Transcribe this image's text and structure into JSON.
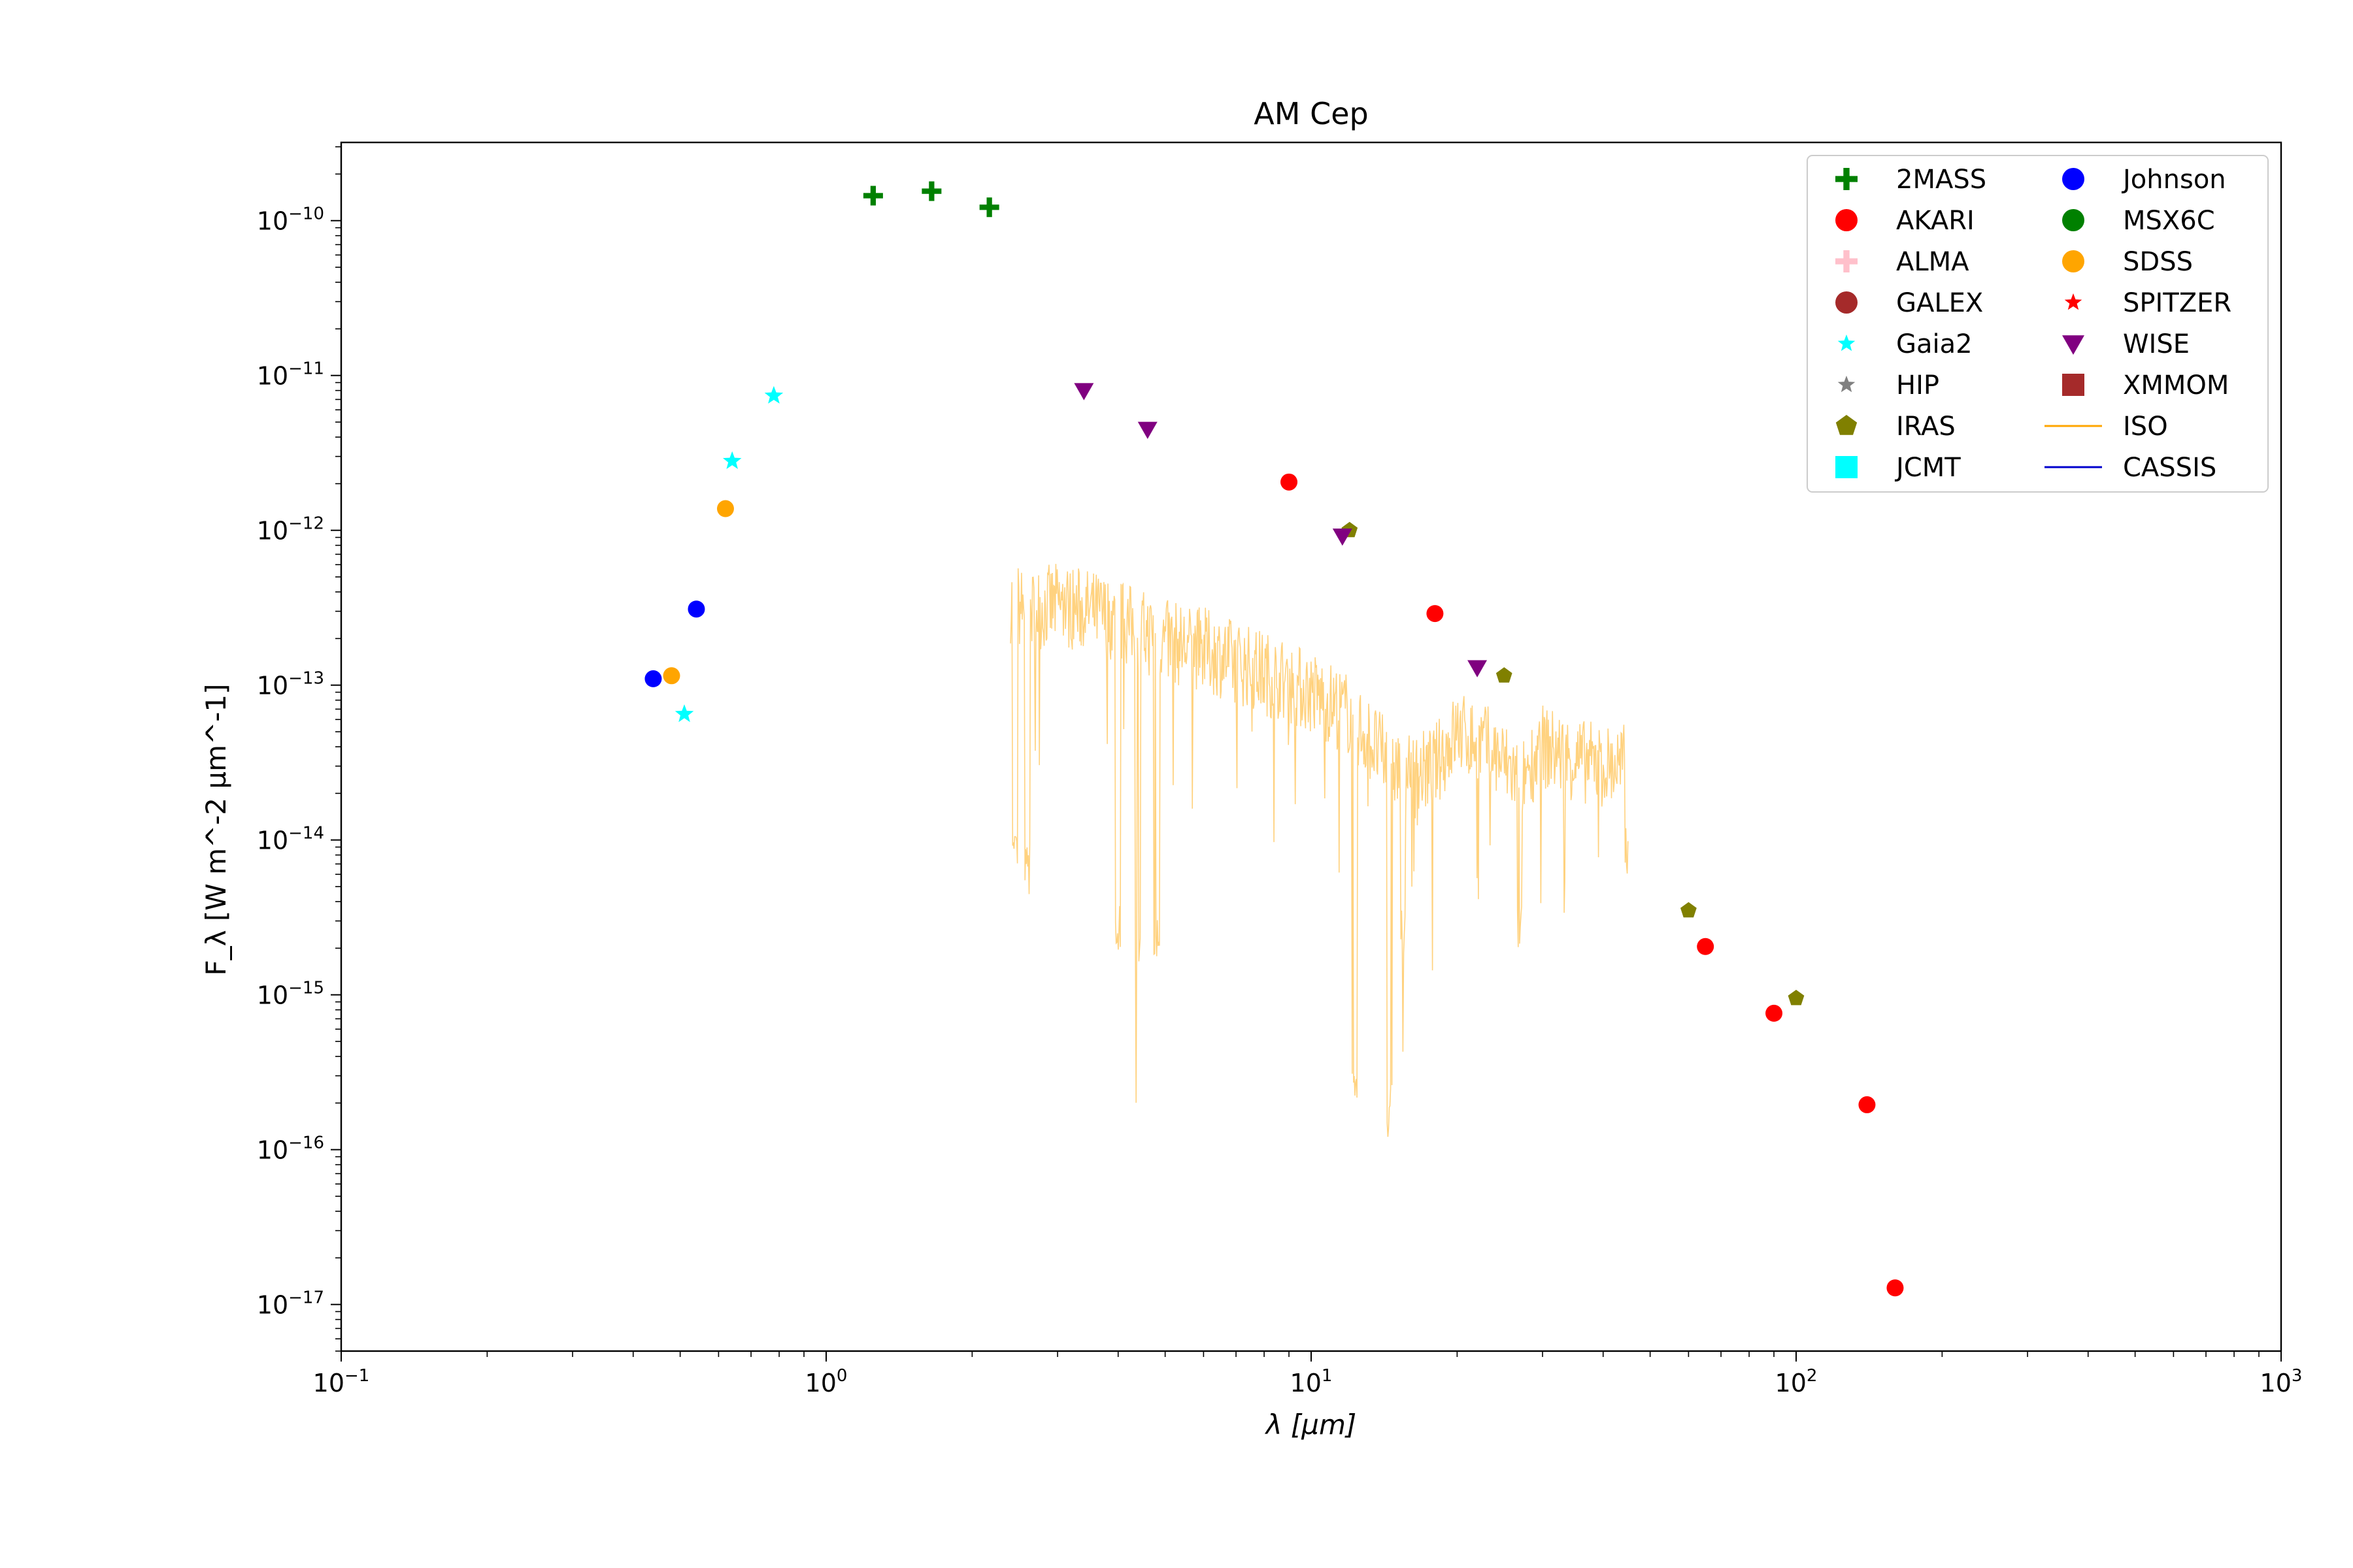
{
  "chart_data": {
    "type": "scatter",
    "title": "AM Cep",
    "xlabel": "λ [μm]",
    "ylabel": "F_λ [W m^-2 μm^-1]",
    "xscale": "log",
    "yscale": "log",
    "xlim": [
      0.1,
      1000
    ],
    "ylim": [
      5e-18,
      3.2e-10
    ],
    "grid": false,
    "legend_position": "top-right",
    "x_ticks": [
      {
        "value": 0.1,
        "base": "10",
        "exp": "−1"
      },
      {
        "value": 1,
        "base": "10",
        "exp": "0"
      },
      {
        "value": 10,
        "base": "10",
        "exp": "1"
      },
      {
        "value": 100,
        "base": "10",
        "exp": "2"
      },
      {
        "value": 1000,
        "base": "10",
        "exp": "3"
      }
    ],
    "y_ticks": [
      {
        "value": 1e-17,
        "base": "10",
        "exp": "−17"
      },
      {
        "value": 1e-16,
        "base": "10",
        "exp": "−16"
      },
      {
        "value": 1e-15,
        "base": "10",
        "exp": "−15"
      },
      {
        "value": 1e-14,
        "base": "10",
        "exp": "−14"
      },
      {
        "value": 1e-13,
        "base": "10",
        "exp": "−13"
      },
      {
        "value": 1e-12,
        "base": "10",
        "exp": "−12"
      },
      {
        "value": 1e-11,
        "base": "10",
        "exp": "−11"
      },
      {
        "value": 1e-10,
        "base": "10",
        "exp": "−10"
      }
    ],
    "series": [
      {
        "name": "2MASS",
        "marker": "plus",
        "color": "#008000",
        "points": [
          [
            1.25,
            1.45e-10
          ],
          [
            1.65,
            1.55e-10
          ],
          [
            2.17,
            1.22e-10
          ]
        ]
      },
      {
        "name": "AKARI",
        "marker": "circle",
        "color": "#ff0000",
        "points": [
          [
            9.0,
            2.05e-12
          ],
          [
            18.0,
            2.9e-13
          ],
          [
            65.0,
            2.05e-15
          ],
          [
            90.0,
            7.6e-16
          ],
          [
            140.0,
            1.95e-16
          ],
          [
            160.0,
            1.28e-17
          ]
        ]
      },
      {
        "name": "ALMA",
        "marker": "plus",
        "color": "#ffc0cb",
        "points": []
      },
      {
        "name": "GALEX",
        "marker": "circle",
        "color": "#a52a2a",
        "points": []
      },
      {
        "name": "Gaia2",
        "marker": "star",
        "color": "#00ffff",
        "points": [
          [
            0.51,
            6.5e-14
          ],
          [
            0.64,
            2.8e-12
          ],
          [
            0.78,
            7.4e-12
          ]
        ]
      },
      {
        "name": "HIP",
        "marker": "star",
        "color": "#808080",
        "points": []
      },
      {
        "name": "IRAS",
        "marker": "pentagon",
        "color": "#808000",
        "points": [
          [
            12.0,
            1e-12
          ],
          [
            25.0,
            1.15e-13
          ],
          [
            60.0,
            3.5e-15
          ],
          [
            100.0,
            9.5e-16
          ]
        ]
      },
      {
        "name": "JCMT",
        "marker": "square",
        "color": "#00ffff",
        "points": []
      },
      {
        "name": "Johnson",
        "marker": "circle",
        "color": "#0000ff",
        "points": [
          [
            0.44,
            1.1e-13
          ],
          [
            0.54,
            3.1e-13
          ]
        ]
      },
      {
        "name": "MSX6C",
        "marker": "circle",
        "color": "#008000",
        "points": []
      },
      {
        "name": "SDSS",
        "marker": "circle",
        "color": "#ffa500",
        "points": [
          [
            0.48,
            1.15e-13
          ],
          [
            0.62,
            1.38e-12
          ]
        ]
      },
      {
        "name": "SPITZER",
        "marker": "star",
        "color": "#ff0000",
        "points": []
      },
      {
        "name": "WISE",
        "marker": "triangle-down",
        "color": "#800080",
        "points": [
          [
            3.4,
            8e-12
          ],
          [
            4.6,
            4.5e-12
          ],
          [
            11.6,
            9.2e-13
          ],
          [
            22.0,
            1.3e-13
          ]
        ]
      },
      {
        "name": "XMMOM",
        "marker": "square",
        "color": "#a52a2a",
        "points": []
      },
      {
        "name": "ISO",
        "marker": "line",
        "color": "#ffa500",
        "linewidth": 1,
        "alpha": 0.5,
        "x_range": [
          2.4,
          45.0
        ],
        "spectrum_envelope": [
          [
            2.4,
            3.5e-13
          ],
          [
            2.6,
            3e-13
          ],
          [
            3.0,
            3.3e-13
          ],
          [
            3.5,
            3e-13
          ],
          [
            4.0,
            2.6e-13
          ],
          [
            5.0,
            1.9e-13
          ],
          [
            6.0,
            1.7e-13
          ],
          [
            8.0,
            1.2e-13
          ],
          [
            10.0,
            9e-14
          ],
          [
            12.0,
            6.5e-14
          ],
          [
            14.0,
            3.5e-14
          ],
          [
            16.0,
            2.5e-14
          ],
          [
            18.0,
            3e-14
          ],
          [
            20.0,
            5e-14
          ],
          [
            23.0,
            4e-14
          ],
          [
            27.0,
            2.5e-14
          ],
          [
            30.0,
            4e-14
          ],
          [
            35.0,
            3.3e-14
          ],
          [
            40.0,
            3e-14
          ],
          [
            45.0,
            3e-14
          ]
        ],
        "absorption_dips": [
          [
            2.45,
            5e-15
          ],
          [
            2.6,
            4.2e-15
          ],
          [
            4.0,
            1.8e-15
          ],
          [
            4.4,
            1.6e-15
          ],
          [
            4.8,
            1.5e-15
          ],
          [
            12.3,
            1.5e-16
          ],
          [
            14.5,
            1.2e-16
          ],
          [
            15.5,
            1.8e-15
          ],
          [
            27.0,
            1.8e-15
          ],
          [
            45.0,
            6e-15
          ]
        ]
      },
      {
        "name": "CASSIS",
        "marker": "line",
        "color": "#0000cd",
        "linewidth": 1,
        "points": []
      }
    ]
  }
}
